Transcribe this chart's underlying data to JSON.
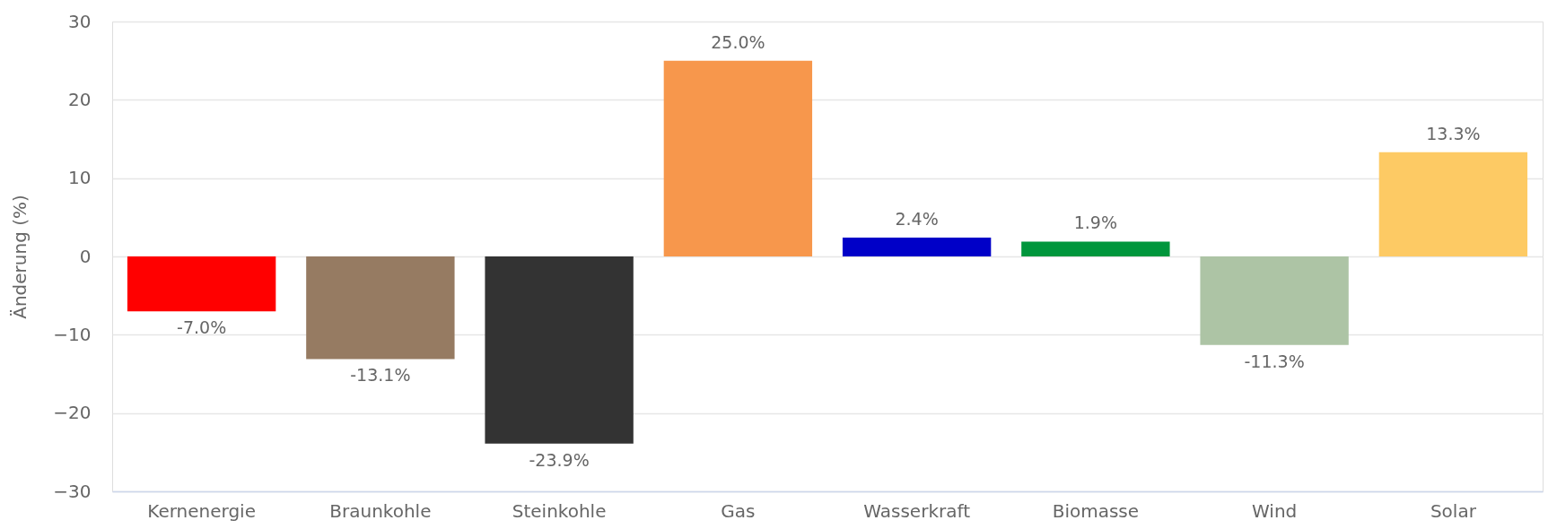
{
  "chart_data": {
    "type": "bar",
    "categories": [
      "Kernenergie",
      "Braunkohle",
      "Steinkohle",
      "Gas",
      "Wasserkraft",
      "Biomasse",
      "Wind",
      "Solar"
    ],
    "values": [
      -7.0,
      -13.1,
      -23.9,
      25.0,
      2.4,
      1.9,
      -11.3,
      13.3
    ],
    "value_labels": [
      "-7.0%",
      "-13.1%",
      "-23.9%",
      "25.0%",
      "2.4%",
      "1.9%",
      "-11.3%",
      "13.3%"
    ],
    "colors": [
      "#ff0000",
      "#967b62",
      "#333333",
      "#f7974c",
      "#0000c8",
      "#00963c",
      "#adc4a5",
      "#fdca64"
    ],
    "ylabel": "Änderung (%)",
    "ylim": [
      -30,
      30
    ],
    "yticks": [
      -30,
      -20,
      -10,
      0,
      10,
      20,
      30
    ],
    "grid": "y"
  }
}
